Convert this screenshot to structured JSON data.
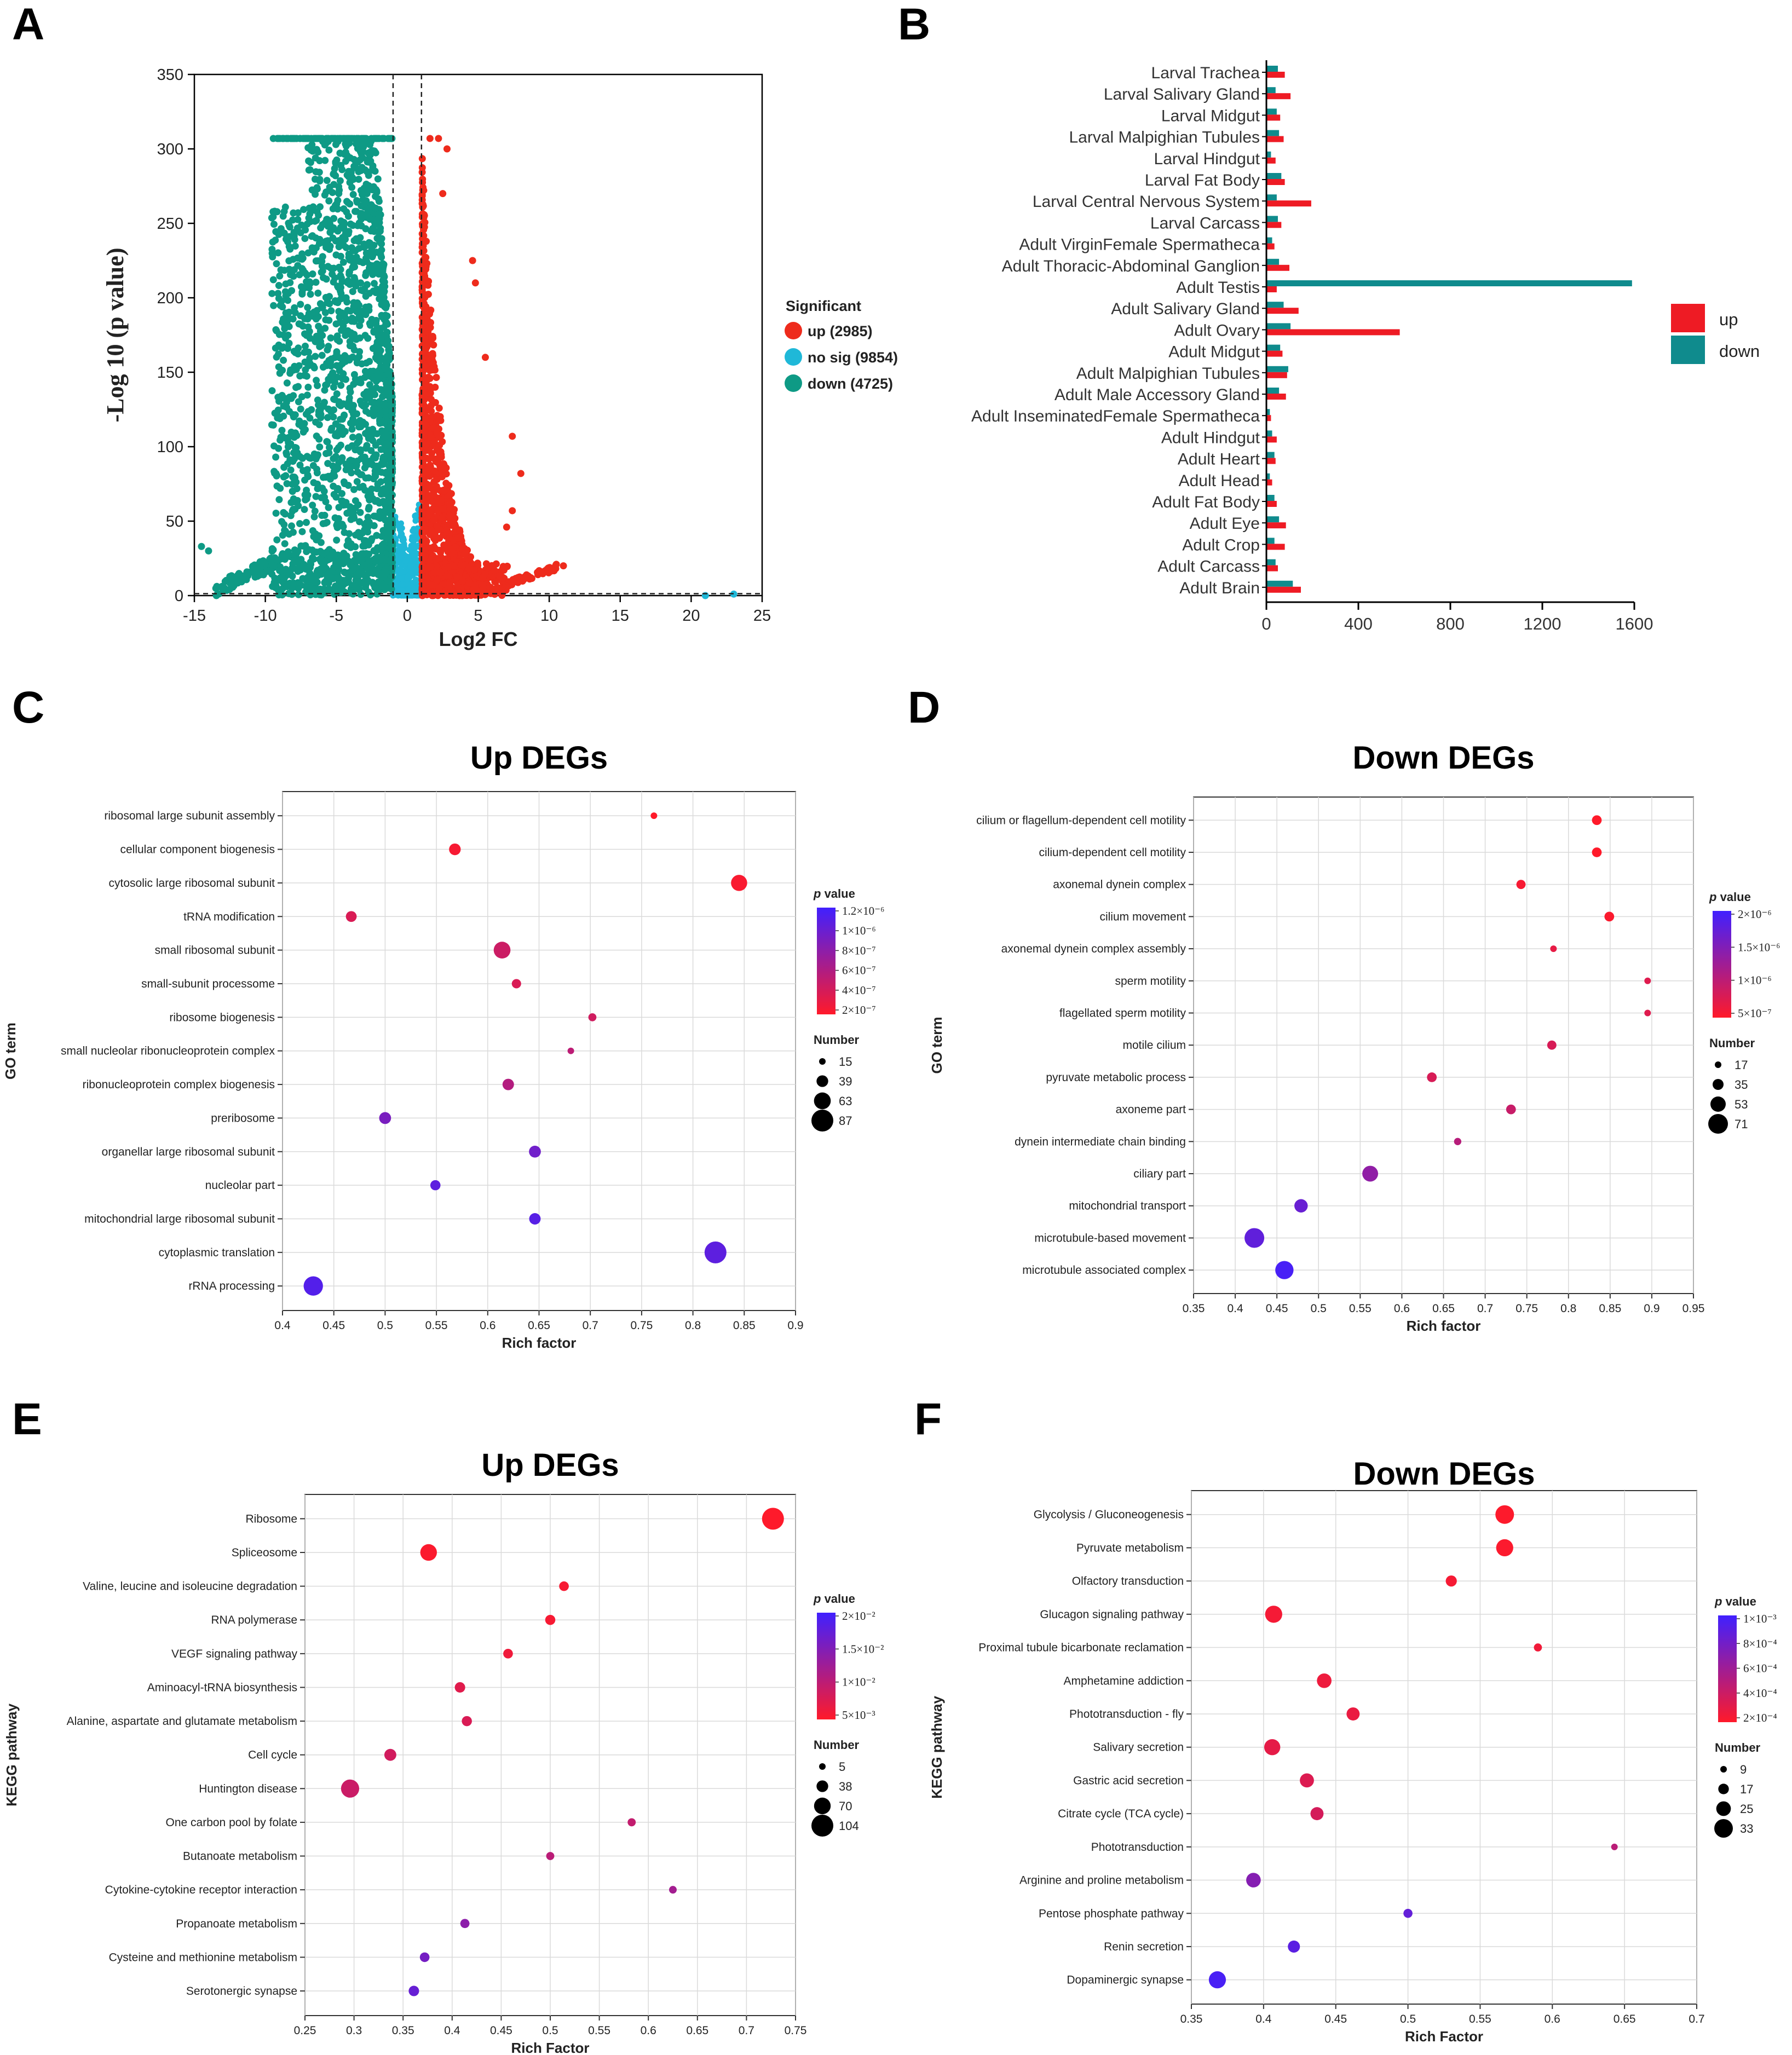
{
  "colors": {
    "up": "#ee2b1c",
    "nosig": "#1fb8d8",
    "down": "#0e9a85",
    "bar_up": "#ee1b24",
    "bar_down": "#0f8b8d",
    "p_low": "#ff1a2a",
    "p_high": "#4020ff"
  },
  "chart_data": [
    {
      "panel": "A",
      "type": "scatter",
      "title": "",
      "xlabel": "Log2 FC",
      "ylabel": "-Log 10 (p value)",
      "xlim": [
        -15,
        25
      ],
      "ylim": [
        0,
        350
      ],
      "xticks": [
        -15,
        -10,
        -5,
        0,
        5,
        10,
        15,
        20,
        25
      ],
      "yticks": [
        0,
        50,
        100,
        150,
        200,
        250,
        300,
        350
      ],
      "thresholds": {
        "x": [
          -1,
          1
        ],
        "y": 1.3
      },
      "legend": {
        "title": "Significant",
        "position": "right"
      },
      "series": [
        {
          "name": "up (2985)",
          "color": "#ee2b1c"
        },
        {
          "name": "no sig (9854)",
          "color": "#1fb8d8"
        },
        {
          "name": "down (4725)",
          "color": "#0e9a85"
        }
      ],
      "highlight_points": [
        {
          "series": "up (2985)",
          "x": 2.2,
          "y": 307
        },
        {
          "series": "up (2985)",
          "x": 1.6,
          "y": 307
        },
        {
          "series": "up (2985)",
          "x": 2.8,
          "y": 300
        },
        {
          "series": "up (2985)",
          "x": 2.5,
          "y": 270
        },
        {
          "series": "up (2985)",
          "x": 4.6,
          "y": 225
        },
        {
          "series": "up (2985)",
          "x": 4.8,
          "y": 210
        },
        {
          "series": "up (2985)",
          "x": 5.5,
          "y": 160
        },
        {
          "series": "up (2985)",
          "x": 7.4,
          "y": 107
        },
        {
          "series": "up (2985)",
          "x": 8.0,
          "y": 82
        },
        {
          "series": "up (2985)",
          "x": 7.4,
          "y": 57
        },
        {
          "series": "up (2985)",
          "x": 7.0,
          "y": 46
        },
        {
          "series": "up (2985)",
          "x": 10.5,
          "y": 21
        },
        {
          "series": "up (2985)",
          "x": 11.0,
          "y": 20
        },
        {
          "series": "down (4725)",
          "x": -14.5,
          "y": 33
        },
        {
          "series": "down (4725)",
          "x": -14.0,
          "y": 30
        },
        {
          "series": "nosig (9854)",
          "x": 21.0,
          "y": 0
        },
        {
          "series": "nosig (9854)",
          "x": 23.0,
          "y": 1
        }
      ]
    },
    {
      "panel": "B",
      "type": "bar",
      "orientation": "horizontal",
      "title": "",
      "xlabel": "",
      "ylabel": "",
      "xlim": [
        0,
        1600
      ],
      "xticks": [
        0,
        400,
        800,
        1200,
        1600
      ],
      "legend": {
        "position": "right"
      },
      "categories": [
        "Larval Trachea",
        "Larval Salivary Gland",
        "Larval Midgut",
        "Larval Malpighian Tubules",
        "Larval Hindgut",
        "Larval Fat Body",
        "Larval Central Nervous System",
        "Larval Carcass",
        "Adult VirginFemale Spermatheca",
        "Adult Thoracic-Abdominal Ganglion",
        "Adult Testis",
        "Adult Salivary Gland",
        "Adult Ovary",
        "Adult Midgut",
        "Adult Malpighian Tubules",
        "Adult Male Accessory Gland",
        "Adult InseminatedFemale Spermatheca",
        "Adult Hindgut",
        "Adult Heart",
        "Adult Head",
        "Adult Fat Body",
        "Adult Eye",
        "Adult Crop",
        "Adult Carcass",
        "Adult Brain"
      ],
      "series": [
        {
          "name": "up",
          "values": [
            80,
            105,
            60,
            75,
            40,
            80,
            195,
            65,
            35,
            100,
            45,
            140,
            580,
            70,
            90,
            85,
            20,
            45,
            40,
            25,
            45,
            85,
            80,
            50,
            150
          ]
        },
        {
          "name": "down",
          "values": [
            50,
            40,
            45,
            55,
            20,
            65,
            45,
            50,
            25,
            55,
            1590,
            75,
            105,
            60,
            95,
            55,
            15,
            25,
            35,
            15,
            35,
            55,
            35,
            40,
            115
          ]
        }
      ]
    },
    {
      "panel": "C",
      "type": "scatter",
      "title": "Up DEGs",
      "xlabel": "Rich factor",
      "ylabel": "GO term",
      "xlim": [
        0.4,
        0.9
      ],
      "xticks": [
        "0.4",
        "0.45",
        "0.5",
        "0.55",
        "0.6",
        "0.65",
        "0.7",
        "0.75",
        "0.8",
        "0.85",
        "0.9"
      ],
      "legend_p": {
        "title": "value",
        "title_italic": "p",
        "ticks": [
          "1.2×10⁻⁶",
          "1×10⁻⁶",
          "8×10⁻⁷",
          "6×10⁻⁷",
          "4×10⁻⁷",
          "2×10⁻⁷"
        ],
        "min": 2e-07,
        "max": 1.2e-06
      },
      "legend_size": {
        "title": "Number",
        "values": [
          15,
          39,
          63,
          87
        ]
      },
      "points": [
        {
          "label": "ribosomal large subunit assembly",
          "x": 0.762,
          "number": 15,
          "p": 2e-07
        },
        {
          "label": "cellular component biogenesis",
          "x": 0.568,
          "number": 39,
          "p": 2.4e-07
        },
        {
          "label": "cytosolic large ribosomal subunit",
          "x": 0.845,
          "number": 60,
          "p": 2.3e-07
        },
        {
          "label": "tRNA modification",
          "x": 0.467,
          "number": 35,
          "p": 4e-07
        },
        {
          "label": "small ribosomal subunit",
          "x": 0.614,
          "number": 63,
          "p": 4.7e-07
        },
        {
          "label": "small-subunit processome",
          "x": 0.628,
          "number": 28,
          "p": 4e-07
        },
        {
          "label": "ribosome biogenesis",
          "x": 0.702,
          "number": 22,
          "p": 4.5e-07
        },
        {
          "label": "small nucleolar ribonucleoprotein complex",
          "x": 0.681,
          "number": 15,
          "p": 5.5e-07
        },
        {
          "label": "ribonucleoprotein complex biogenesis",
          "x": 0.62,
          "number": 38,
          "p": 6e-07
        },
        {
          "label": "preribosome",
          "x": 0.5,
          "number": 40,
          "p": 9e-07
        },
        {
          "label": "organellar large ribosomal subunit",
          "x": 0.646,
          "number": 40,
          "p": 9.5e-07
        },
        {
          "label": "nucleolar part",
          "x": 0.549,
          "number": 32,
          "p": 1.05e-06
        },
        {
          "label": "mitochondrial large ribosomal subunit",
          "x": 0.646,
          "number": 38,
          "p": 1.08e-06
        },
        {
          "label": "cytoplasmic translation",
          "x": 0.822,
          "number": 87,
          "p": 1.05e-06
        },
        {
          "label": "rRNA processing",
          "x": 0.43,
          "number": 75,
          "p": 1.1e-06
        }
      ]
    },
    {
      "panel": "D",
      "type": "scatter",
      "title": "Down DEGs",
      "xlabel": "Rich factor",
      "ylabel": "GO term",
      "xlim": [
        0.35,
        0.95
      ],
      "xticks": [
        "0.35",
        "0.4",
        "0.45",
        "0.5",
        "0.55",
        "0.6",
        "0.65",
        "0.7",
        "0.75",
        "0.8",
        "0.85",
        "0.9",
        "0.95"
      ],
      "legend_p": {
        "title": "value",
        "title_italic": "p",
        "ticks": [
          "2×10⁻⁶",
          "1.5×10⁻⁶",
          "1×10⁻⁶",
          "5×10⁻⁷"
        ],
        "min": 1e-07,
        "max": 2.5e-06
      },
      "legend_size": {
        "title": "Number",
        "values": [
          17,
          35,
          53,
          71
        ]
      },
      "points": [
        {
          "label": "cilium or flagellum-dependent cell motility",
          "x": 0.834,
          "number": 30,
          "p": 1e-07
        },
        {
          "label": "cilium-dependent cell motility",
          "x": 0.834,
          "number": 30,
          "p": 1e-07
        },
        {
          "label": "axonemal dynein complex",
          "x": 0.743,
          "number": 28,
          "p": 2e-07
        },
        {
          "label": "cilium movement",
          "x": 0.849,
          "number": 30,
          "p": 1.5e-07
        },
        {
          "label": "axonemal dynein complex assembly",
          "x": 0.782,
          "number": 17,
          "p": 4e-07
        },
        {
          "label": "sperm motility",
          "x": 0.895,
          "number": 17,
          "p": 5e-07
        },
        {
          "label": "flagellated sperm motility",
          "x": 0.895,
          "number": 17,
          "p": 5e-07
        },
        {
          "label": "motile cilium",
          "x": 0.78,
          "number": 28,
          "p": 6e-07
        },
        {
          "label": "pyruvate metabolic process",
          "x": 0.636,
          "number": 30,
          "p": 6e-07
        },
        {
          "label": "axoneme part",
          "x": 0.731,
          "number": 30,
          "p": 8e-07
        },
        {
          "label": "dynein intermediate chain binding",
          "x": 0.667,
          "number": 20,
          "p": 1e-06
        },
        {
          "label": "ciliary part",
          "x": 0.562,
          "number": 55,
          "p": 1.5e-06
        },
        {
          "label": "mitochondrial transport",
          "x": 0.479,
          "number": 45,
          "p": 2e-06
        },
        {
          "label": "microtubule-based movement",
          "x": 0.423,
          "number": 71,
          "p": 2.1e-06
        },
        {
          "label": "microtubule associated complex",
          "x": 0.459,
          "number": 65,
          "p": 2.4e-06
        }
      ]
    },
    {
      "panel": "E",
      "type": "scatter",
      "title": "Up DEGs",
      "xlabel": "Rich Factor",
      "ylabel": "KEGG pathway",
      "xlim": [
        0.25,
        0.75
      ],
      "xticks": [
        "0.25",
        "0.3",
        "0.35",
        "0.4",
        "0.45",
        "0.5",
        "0.55",
        "0.6",
        "0.65",
        "0.7",
        "0.75"
      ],
      "legend_p": {
        "title": "value",
        "title_italic": "p",
        "ticks": [
          "2×10⁻²",
          "1.5×10⁻²",
          "1×10⁻²",
          "5×10⁻³"
        ],
        "min": 0,
        "max": 0.025
      },
      "legend_size": {
        "title": "Number",
        "values": [
          5,
          38,
          70,
          104
        ]
      },
      "points": [
        {
          "label": "Ribosome",
          "x": 0.727,
          "number": 104,
          "p": 0.0001
        },
        {
          "label": "Spliceosome",
          "x": 0.376,
          "number": 70,
          "p": 0.0005
        },
        {
          "label": "Valine, leucine and isoleucine degradation",
          "x": 0.514,
          "number": 25,
          "p": 0.001
        },
        {
          "label": "RNA polymerase",
          "x": 0.5,
          "number": 28,
          "p": 0.001
        },
        {
          "label": "VEGF signaling pathway",
          "x": 0.457,
          "number": 25,
          "p": 0.002
        },
        {
          "label": "Aminoacyl-tRNA biosynthesis",
          "x": 0.408,
          "number": 30,
          "p": 0.004
        },
        {
          "label": "Alanine, aspartate and glutamate metabolism",
          "x": 0.415,
          "number": 28,
          "p": 0.005
        },
        {
          "label": "Cell cycle",
          "x": 0.337,
          "number": 40,
          "p": 0.006
        },
        {
          "label": "Huntington disease",
          "x": 0.296,
          "number": 80,
          "p": 0.007
        },
        {
          "label": "One carbon pool by folate",
          "x": 0.583,
          "number": 15,
          "p": 0.008
        },
        {
          "label": "Butanoate metabolism",
          "x": 0.5,
          "number": 15,
          "p": 0.009
        },
        {
          "label": "Cytokine-cytokine receptor interaction",
          "x": 0.625,
          "number": 12,
          "p": 0.012
        },
        {
          "label": "Propanoate metabolism",
          "x": 0.413,
          "number": 22,
          "p": 0.015
        },
        {
          "label": "Cysteine and methionine metabolism",
          "x": 0.372,
          "number": 25,
          "p": 0.018
        },
        {
          "label": "Serotonergic synapse",
          "x": 0.361,
          "number": 30,
          "p": 0.02
        }
      ]
    },
    {
      "panel": "F",
      "type": "scatter",
      "title": "Down DEGs",
      "xlabel": "Rich Factor",
      "ylabel": "KEGG pathway",
      "xlim": [
        0.35,
        0.7
      ],
      "xticks": [
        "0.35",
        "0.4",
        "0.45",
        "0.5",
        "0.55",
        "0.6",
        "0.65",
        "0.7"
      ],
      "legend_p": {
        "title": "value",
        "title_italic": "p",
        "ticks": [
          "1×10⁻³",
          "8×10⁻⁴",
          "6×10⁻⁴",
          "4×10⁻⁴",
          "2×10⁻⁴"
        ],
        "min": 0,
        "max": 0.0011
      },
      "legend_size": {
        "title": "Number",
        "values": [
          9,
          17,
          25,
          33
        ]
      },
      "points": [
        {
          "label": "Glycolysis / Gluconeogenesis",
          "x": 0.567,
          "number": 33,
          "p": 1e-05
        },
        {
          "label": "Pyruvate metabolism",
          "x": 0.567,
          "number": 30,
          "p": 2e-05
        },
        {
          "label": "Olfactory transduction",
          "x": 0.53,
          "number": 18,
          "p": 5e-05
        },
        {
          "label": "Glucagon signaling pathway",
          "x": 0.407,
          "number": 30,
          "p": 6e-05
        },
        {
          "label": "Proximal tubule bicarbonate reclamation",
          "x": 0.59,
          "number": 12,
          "p": 8e-05
        },
        {
          "label": "Amphetamine addiction",
          "x": 0.442,
          "number": 25,
          "p": 0.0001
        },
        {
          "label": "Phototransduction - fly",
          "x": 0.462,
          "number": 22,
          "p": 0.00012
        },
        {
          "label": "Salivary secretion",
          "x": 0.406,
          "number": 28,
          "p": 0.00015
        },
        {
          "label": "Gastric acid secretion",
          "x": 0.43,
          "number": 24,
          "p": 0.0002
        },
        {
          "label": "Citrate cycle (TCA cycle)",
          "x": 0.437,
          "number": 22,
          "p": 0.00025
        },
        {
          "label": "Phototransduction",
          "x": 0.643,
          "number": 9,
          "p": 0.0004
        },
        {
          "label": "Arginine and proline metabolism",
          "x": 0.393,
          "number": 25,
          "p": 0.0007
        },
        {
          "label": "Pentose phosphate pathway",
          "x": 0.5,
          "number": 14,
          "p": 0.0009
        },
        {
          "label": "Renin secretion",
          "x": 0.421,
          "number": 20,
          "p": 0.00095
        },
        {
          "label": "Dopaminergic synapse",
          "x": 0.368,
          "number": 30,
          "p": 0.00105
        }
      ]
    }
  ]
}
